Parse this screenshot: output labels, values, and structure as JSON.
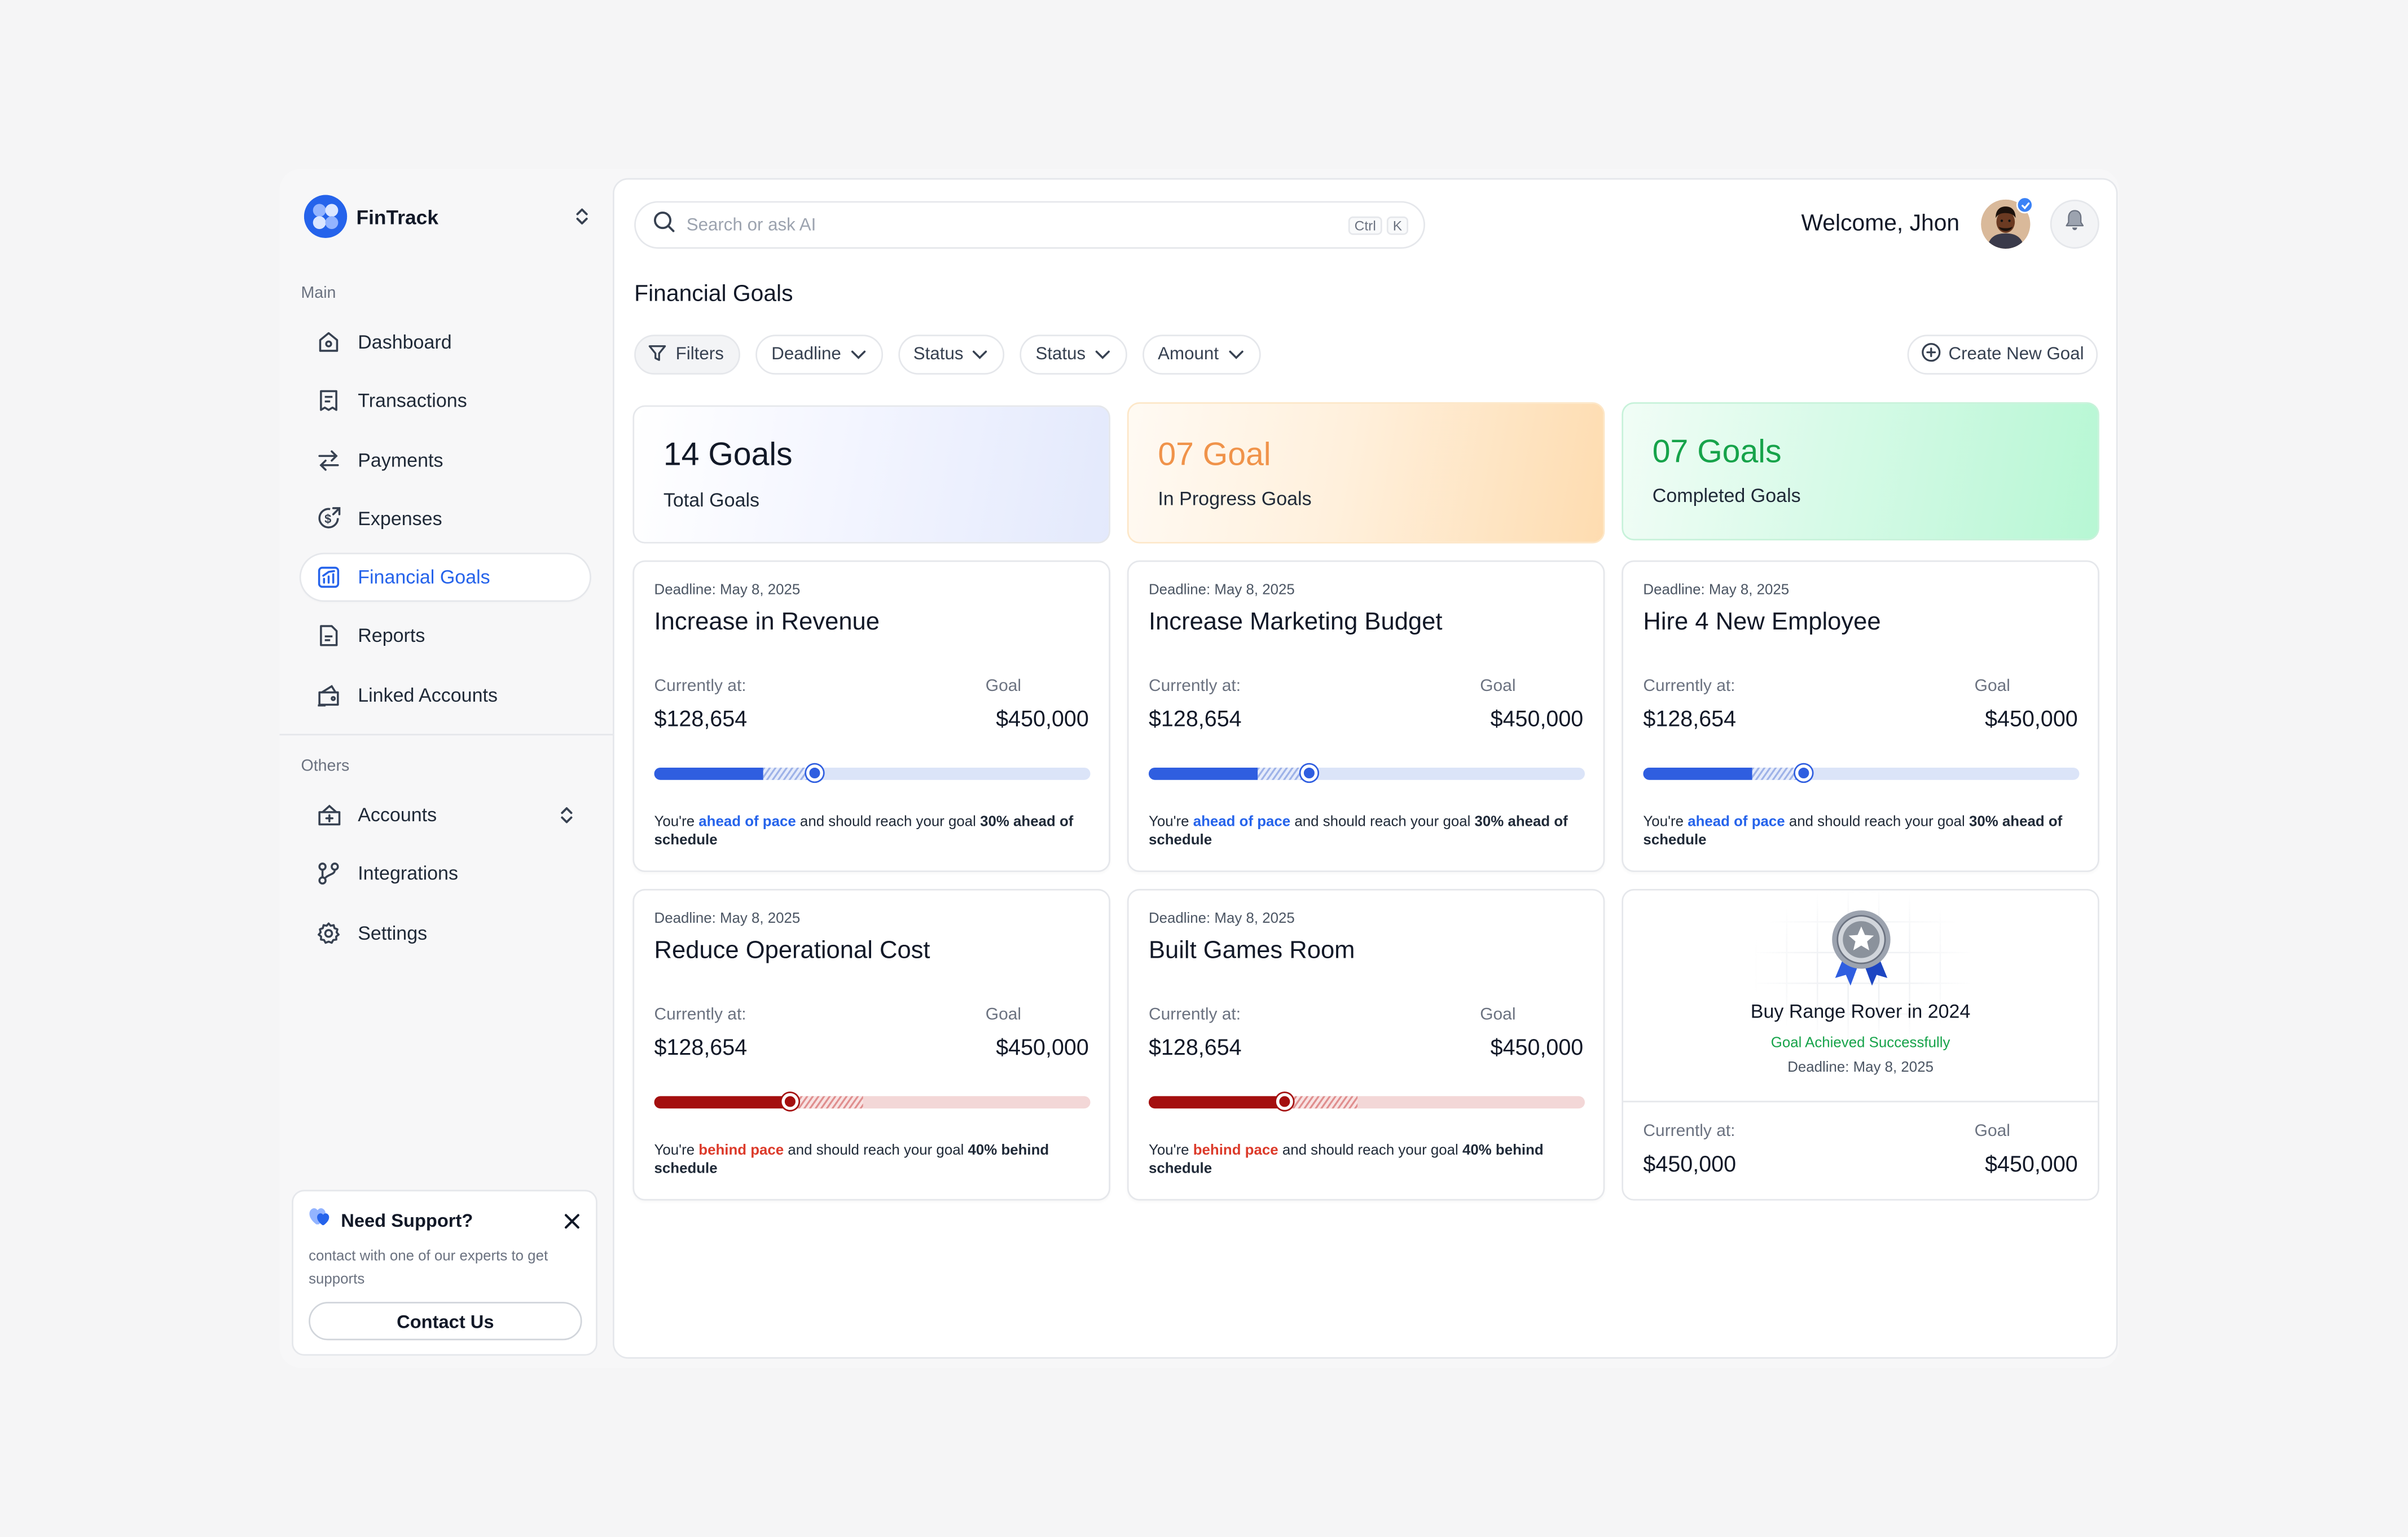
{
  "brand": {
    "name": "FinTrack"
  },
  "sidebar": {
    "main_label": "Main",
    "main_items": [
      {
        "label": "Dashboard",
        "icon": "home-icon"
      },
      {
        "label": "Transactions",
        "icon": "receipt-icon"
      },
      {
        "label": "Payments",
        "icon": "arrows-swap-icon"
      },
      {
        "label": "Expenses",
        "icon": "dollar-coin-icon"
      },
      {
        "label": "Financial Goals",
        "icon": "chart-goal-icon",
        "active": true
      },
      {
        "label": "Reports",
        "icon": "report-icon"
      },
      {
        "label": "Linked Accounts",
        "icon": "wallet-icon"
      }
    ],
    "others_label": "Others",
    "other_items": [
      {
        "label": "Accounts",
        "icon": "accounts-icon"
      },
      {
        "label": "Integrations",
        "icon": "integrations-icon"
      },
      {
        "label": "Settings",
        "icon": "gear-icon"
      }
    ]
  },
  "support": {
    "title": "Need Support?",
    "text": "contact with one of our experts to get supports",
    "button": "Contact Us"
  },
  "header": {
    "search_placeholder": "Search or ask AI",
    "shortcut_keys": [
      "Ctrl",
      "K"
    ],
    "welcome": "Welcome, Jhon"
  },
  "page": {
    "title": "Financial Goals",
    "filters": [
      "Filters",
      "Deadline",
      "Status",
      "Status",
      "Amount"
    ],
    "create_button": "Create New Goal"
  },
  "summary": [
    {
      "value": "14 Goals",
      "label": "Total Goals"
    },
    {
      "value": "07 Goal",
      "label": "In Progress Goals"
    },
    {
      "value": "07 Goals",
      "label": "Completed Goals"
    }
  ],
  "goals": [
    {
      "deadline": "Deadline: May 8, 2025",
      "title": "Increase in Revenue",
      "current_label": "Currently at:",
      "current": "$128,654",
      "goal_label": "Goal",
      "goal": "$450,000",
      "status": "ahead",
      "progress": 0.25,
      "projected": 0.37,
      "note_pre": "You're ",
      "note_pace": "ahead of pace",
      "note_mid": " and should reach your goal ",
      "note_bold": "30% ahead of schedule"
    },
    {
      "deadline": "Deadline: May 8, 2025",
      "title": "Increase Marketing Budget",
      "current_label": "Currently at:",
      "current": "$128,654",
      "goal_label": "Goal",
      "goal": "$450,000",
      "status": "ahead",
      "progress": 0.25,
      "projected": 0.37,
      "note_pre": "You're ",
      "note_pace": "ahead of pace",
      "note_mid": " and should reach your goal ",
      "note_bold": "30% ahead of schedule"
    },
    {
      "deadline": "Deadline: May 8, 2025",
      "title": "Hire 4 New Employee",
      "current_label": "Currently at:",
      "current": "$128,654",
      "goal_label": "Goal",
      "goal": "$450,000",
      "status": "ahead",
      "progress": 0.25,
      "projected": 0.37,
      "note_pre": "You're ",
      "note_pace": "ahead of pace",
      "note_mid": " and should reach your goal ",
      "note_bold": "30% ahead of schedule"
    },
    {
      "deadline": "Deadline: May 8, 2025",
      "title": "Reduce Operational Cost",
      "current_label": "Currently at:",
      "current": "$128,654",
      "goal_label": "Goal",
      "goal": "$450,000",
      "status": "behind",
      "progress": 0.31,
      "projected": 0.48,
      "note_pre": "You're ",
      "note_pace": "behind pace",
      "note_mid": " and should reach your goal ",
      "note_bold": "40% behind schedule"
    },
    {
      "deadline": "Deadline: May 8, 2025",
      "title": "Built Games Room",
      "current_label": "Currently at:",
      "current": "$128,654",
      "goal_label": "Goal",
      "goal": "$450,000",
      "status": "behind",
      "progress": 0.31,
      "projected": 0.48,
      "note_pre": "You're ",
      "note_pace": "behind pace",
      "note_mid": " and should reach your goal ",
      "note_bold": "40% behind schedule"
    }
  ],
  "achieved": {
    "title": "Buy Range Rover in 2024",
    "status": "Goal Achieved Successfully",
    "deadline": "Deadline: May 8, 2025",
    "current_label": "Currently at:",
    "current": "$450,000",
    "goal_label": "Goal",
    "goal": "$450,000"
  },
  "colors": {
    "accent": "#2563eb",
    "ahead": "#2f5ee0",
    "behind": "#a40f0f",
    "in_progress": "#f0934a",
    "completed": "#16a34a"
  }
}
